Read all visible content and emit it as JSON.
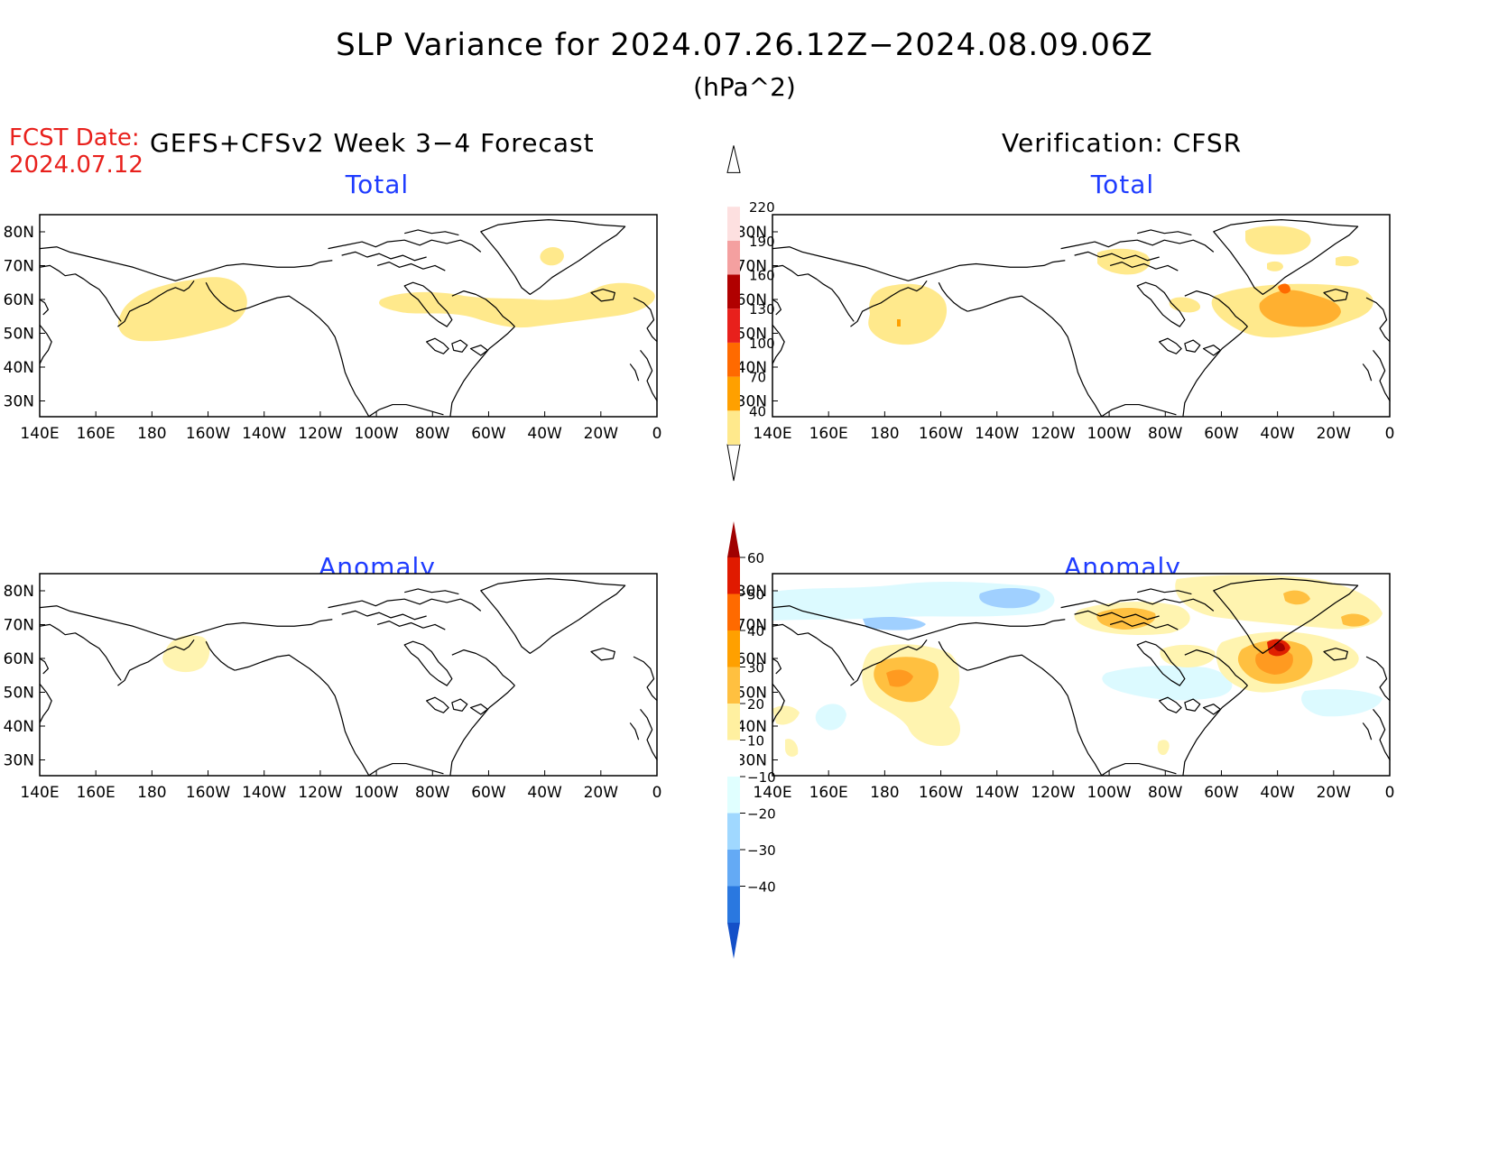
{
  "title": "SLP Variance for 2024.07.26.12Z−2024.08.09.06Z",
  "units": "(hPa^2)",
  "fcst_date_label": "FCST Date:",
  "fcst_date_value": "2024.07.12",
  "left_header": "GEFS+CFSv2 Week 3−4 Forecast",
  "right_header": "Verification: CFSR",
  "panels": {
    "top_left": {
      "title": "Total"
    },
    "top_right": {
      "title": "Total"
    },
    "bottom_left": {
      "title": "Anomaly"
    },
    "bottom_right": {
      "title": "Anomaly"
    }
  },
  "lat_labels": [
    "80N",
    "70N",
    "60N",
    "50N",
    "40N",
    "30N"
  ],
  "lon_labels": [
    "140E",
    "160E",
    "180",
    "160W",
    "140W",
    "120W",
    "100W",
    "80W",
    "60W",
    "40W",
    "20W",
    "0"
  ],
  "total_colorbar": {
    "levels": [
      "40",
      "70",
      "100",
      "130",
      "160",
      "190",
      "220"
    ],
    "colors": [
      "#ffe98c",
      "#ffa000",
      "#ff6a00",
      "#e8201c",
      "#b00000",
      "#f4a0a0",
      "#fde0e0",
      "#ffffff"
    ]
  },
  "anomaly_colorbar": {
    "levels": [
      "60",
      "50",
      "40",
      "30",
      "20",
      "10",
      "−10",
      "−20",
      "−30",
      "−40"
    ],
    "colors": [
      "#a00000",
      "#e01a00",
      "#ff6a00",
      "#ffa000",
      "#ffc040",
      "#fff0a0",
      "#ffffff",
      "#e0ffff",
      "#a0d8ff",
      "#64aaf5",
      "#2a78e0",
      "#1450c8"
    ]
  },
  "colors": {
    "title_blue": "#1f3cff",
    "fcst_red": "#e8201c",
    "shade_yellow": "#ffe98c",
    "shade_orange": "#ffb030",
    "shade_darkorange": "#ff7a00",
    "shade_red": "#e02000",
    "shade_darkred": "#a00000",
    "shade_lightblue": "#dcfaff",
    "shade_blue": "#a0d0ff"
  }
}
